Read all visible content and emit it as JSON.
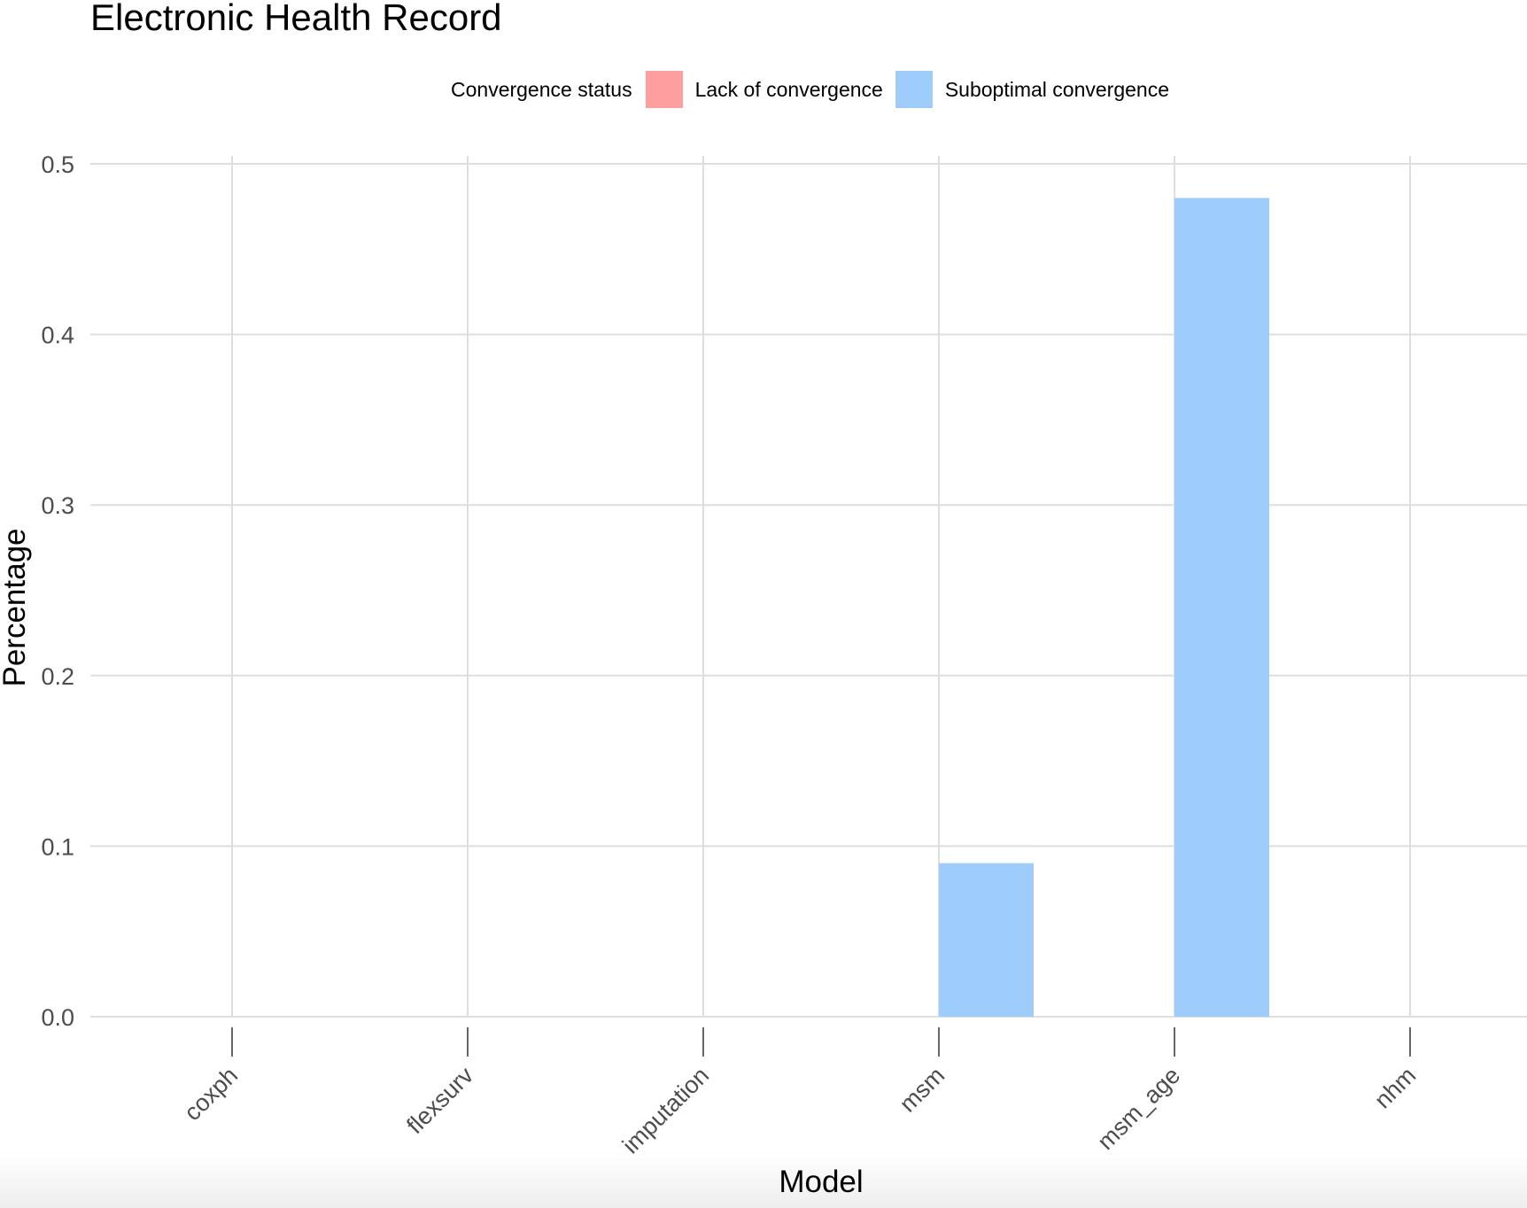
{
  "chart_data": {
    "type": "bar",
    "title": "Electronic Health Record",
    "xlabel": "Model",
    "ylabel": "Percentage",
    "categories": [
      "coxph",
      "flexsurv",
      "imputation",
      "msm",
      "msm_age",
      "nhm"
    ],
    "series": [
      {
        "name": "Lack of convergence",
        "color": "#ff9e9e",
        "values": [
          0,
          0,
          0,
          0,
          0,
          0
        ]
      },
      {
        "name": "Suboptimal convergence",
        "color": "#9ecdfb",
        "values": [
          0,
          0,
          0,
          0.09,
          0.48,
          0
        ]
      }
    ],
    "ylim": [
      0,
      0.5
    ],
    "yticks": [
      "0.0",
      "0.1",
      "0.2",
      "0.3",
      "0.4",
      "0.5"
    ],
    "legend": {
      "title": "Convergence status",
      "position": "top"
    },
    "grid": true
  }
}
